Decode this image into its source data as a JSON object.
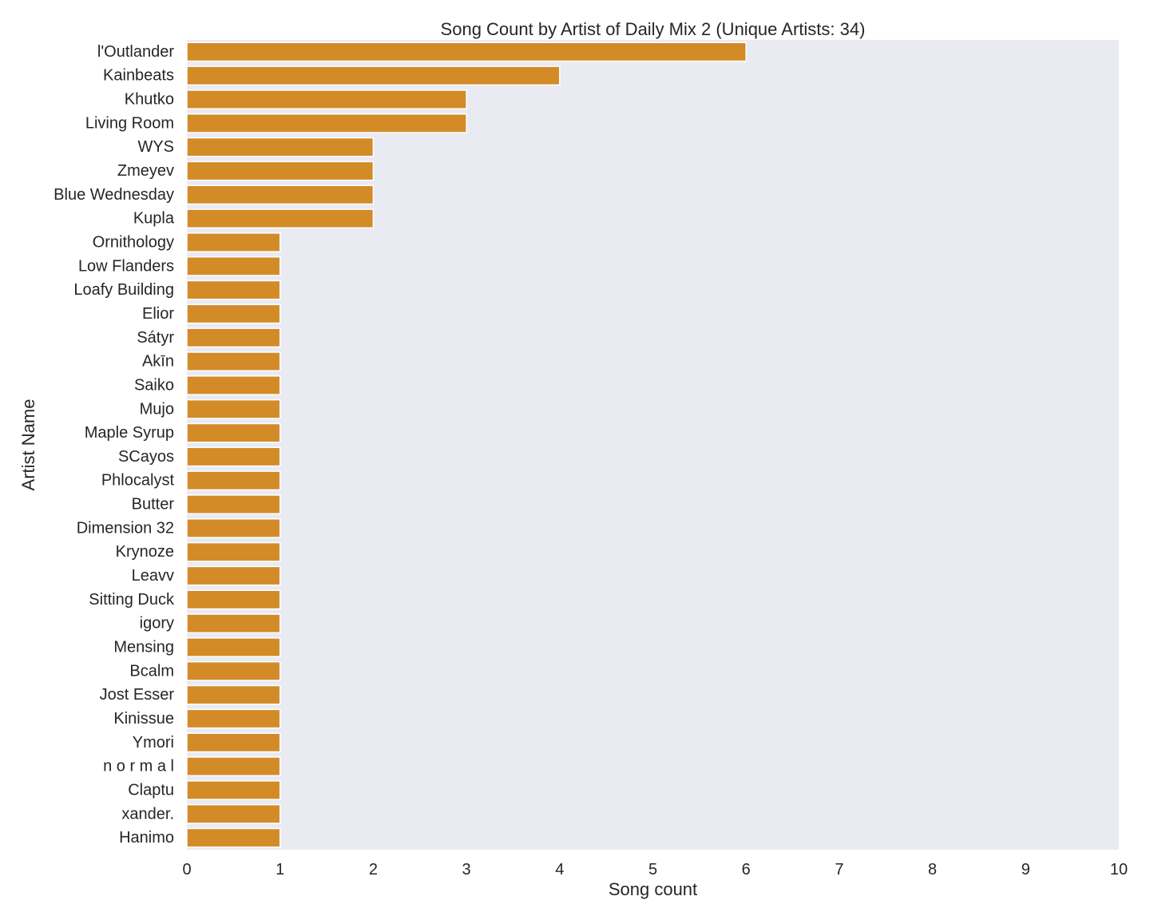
{
  "chart_data": {
    "type": "bar",
    "orientation": "horizontal",
    "title": "Song Count by Artist of Daily Mix 2 (Unique Artists: 34)",
    "xlabel": "Song count",
    "ylabel": "Artist Name",
    "xlim": [
      0,
      10
    ],
    "xticks": [
      "0",
      "1",
      "2",
      "3",
      "4",
      "5",
      "6",
      "7",
      "8",
      "9",
      "10"
    ],
    "grid": false,
    "bar_color": "#d38b28",
    "plot_background": "#eaeaf2",
    "categories": [
      "l'Outlander",
      "Kainbeats",
      "Khutko",
      "Living Room",
      "WYS",
      "Zmeyev",
      "Blue Wednesday",
      "Kupla",
      "Ornithology",
      "Low Flanders",
      "Loafy Building",
      "Elior",
      "Sátyr",
      "Akīn",
      "Saiko",
      "Mujo",
      "Maple Syrup",
      "SCayos",
      "Phlocalyst",
      "Butter",
      "Dimension 32",
      "Krynoze",
      "Leavv",
      "Sitting Duck",
      "igory",
      "Mensing",
      "Bcalm",
      "Jost Esser",
      "Kinissue",
      "Ymori",
      "n o r m a l",
      "Claptu",
      "xander.",
      "Hanimo"
    ],
    "values": [
      6,
      4,
      3,
      3,
      2,
      2,
      2,
      2,
      1,
      1,
      1,
      1,
      1,
      1,
      1,
      1,
      1,
      1,
      1,
      1,
      1,
      1,
      1,
      1,
      1,
      1,
      1,
      1,
      1,
      1,
      1,
      1,
      1,
      1
    ]
  }
}
